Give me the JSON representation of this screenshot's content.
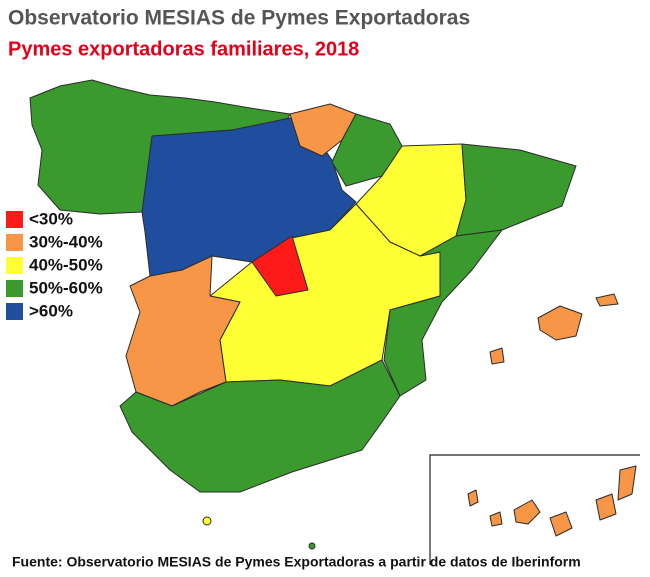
{
  "header": {
    "title": "Observatorio MESIAS de Pymes Exportadoras",
    "subtitle": "Pymes exportadoras familiares, 2018"
  },
  "legend": [
    {
      "label": "<30%",
      "color": "#ff1a1a"
    },
    {
      "label": "30%-40%",
      "color": "#f79646"
    },
    {
      "label": "40%-50%",
      "color": "#ffff33"
    },
    {
      "label": "50%-60%",
      "color": "#3a9a2e"
    },
    {
      "label": ">60%",
      "color": "#1f4e9e"
    }
  ],
  "footer": {
    "source": "Fuente: Observatorio MESIAS de Pymes Exportadoras a partir de datos de Iberinform"
  }
}
